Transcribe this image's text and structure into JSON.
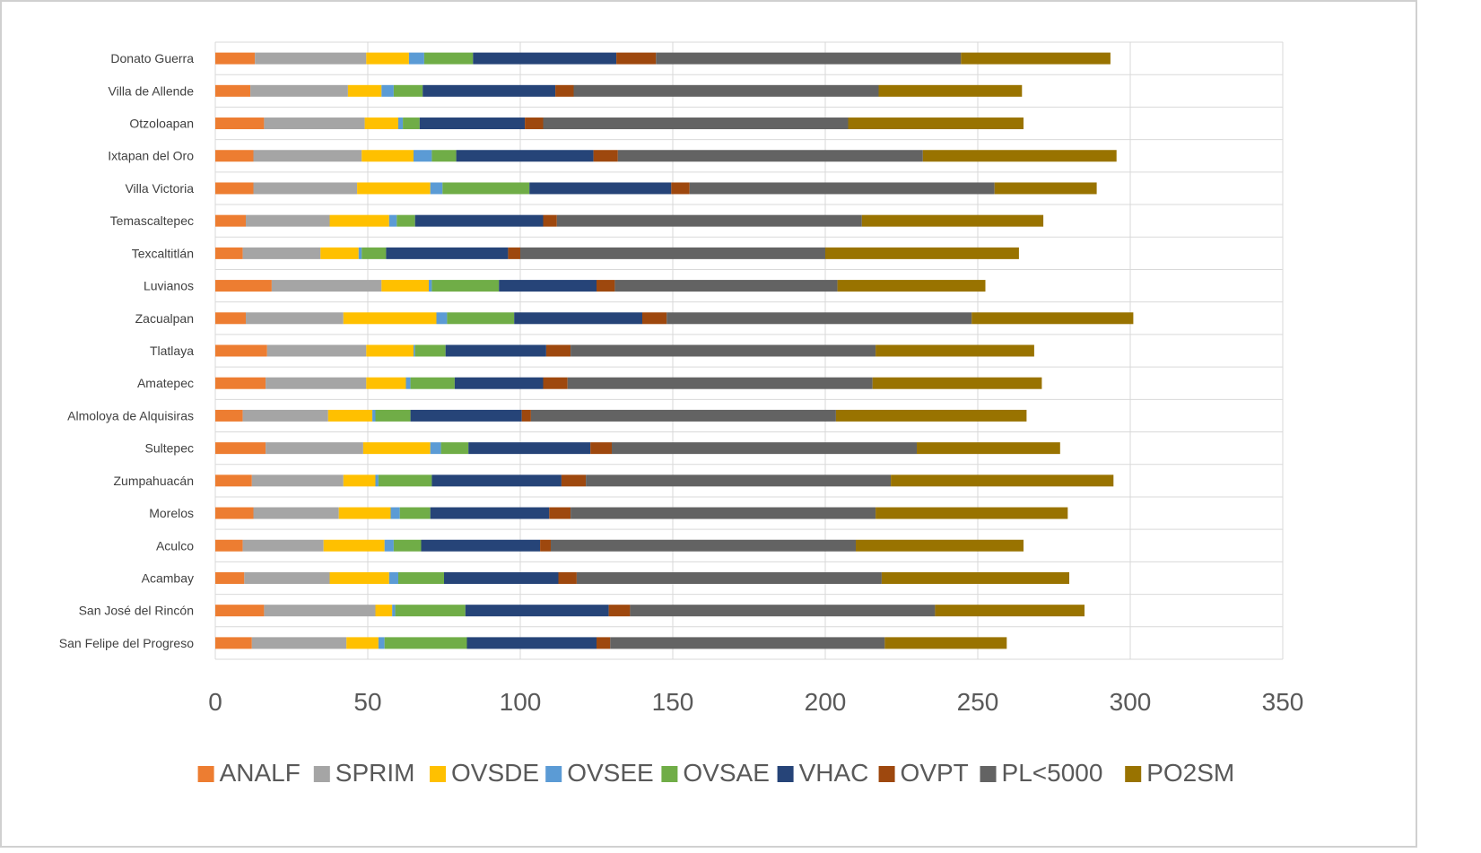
{
  "chart_data": {
    "type": "bar",
    "orientation": "horizontal",
    "stacked": true,
    "title": "",
    "xlabel": "",
    "ylabel": "",
    "xlim": [
      0,
      350
    ],
    "xticks": [
      0,
      50,
      100,
      150,
      200,
      250,
      300,
      350
    ],
    "grid": "vertical",
    "legend_position": "bottom",
    "categories": [
      "Donato Guerra",
      "Villa de Allende",
      "Otzoloapan",
      "Ixtapan del Oro",
      "Villa Victoria",
      "Temascaltepec",
      "Texcaltitlán",
      "Luvianos",
      "Zacualpan",
      "Tlatlaya",
      "Amatepec",
      "Almoloya de Alquisiras",
      "Sultepec",
      "Zumpahuacán",
      "Morelos",
      "Aculco",
      "Acambay",
      "San José del Rincón",
      "San Felipe del Progreso"
    ],
    "series": [
      {
        "name": "ANALF",
        "color": "#ED7D31",
        "values": [
          13,
          11.5,
          16,
          12.5,
          12.5,
          10,
          9,
          18.5,
          10,
          17,
          16.5,
          9,
          16.5,
          12,
          12.5,
          9,
          9.5,
          16,
          12
        ]
      },
      {
        "name": "SPRIM",
        "color": "#A5A5A5",
        "values": [
          36.5,
          32,
          33,
          35.5,
          34,
          27.5,
          25.5,
          36,
          32,
          32.5,
          33,
          28,
          32,
          30,
          28,
          26.5,
          28,
          36.5,
          31
        ]
      },
      {
        "name": "OVSDE",
        "color": "#FFC000",
        "values": [
          14,
          11,
          11,
          17,
          24,
          19.5,
          12.5,
          15.5,
          30.5,
          15.5,
          13,
          14.5,
          22,
          10.5,
          17,
          20,
          19.5,
          5.5,
          10.5
        ]
      },
      {
        "name": "OVSEE",
        "color": "#5B9BD5",
        "values": [
          5,
          4,
          1.5,
          6,
          4,
          2.5,
          1,
          1,
          3.5,
          0.5,
          1.5,
          1,
          3.5,
          1,
          3,
          3,
          3,
          1,
          2
        ]
      },
      {
        "name": "OVSAE",
        "color": "#70AD47",
        "values": [
          16,
          9.5,
          5.5,
          8,
          28.5,
          6,
          8,
          22,
          22,
          10,
          14.5,
          11.5,
          9,
          17.5,
          10,
          9,
          15,
          23,
          27
        ]
      },
      {
        "name": "VHAC",
        "color": "#264478",
        "values": [
          47,
          43.5,
          34.5,
          45,
          46.5,
          42,
          40,
          32,
          42,
          33,
          29,
          36.5,
          40,
          42.5,
          39,
          39,
          37.5,
          47,
          42.5
        ]
      },
      {
        "name": "OVPT",
        "color": "#9E480E",
        "values": [
          13,
          6,
          6,
          8,
          6,
          4.5,
          4,
          6,
          8,
          8,
          8,
          3,
          7,
          8,
          7,
          3.5,
          6,
          7,
          4.5
        ]
      },
      {
        "name": "PL<5000",
        "color": "#636363",
        "values": [
          100,
          100,
          100,
          100,
          100,
          100,
          100,
          73,
          100,
          100,
          100,
          100,
          100,
          100,
          100,
          100,
          100,
          100,
          90
        ]
      },
      {
        "name": "PO2SM",
        "color": "#997300",
        "values": [
          49,
          47,
          57.5,
          63.5,
          33.5,
          59.5,
          63.5,
          48.5,
          53,
          52,
          55.5,
          62.5,
          47,
          73,
          63,
          55,
          61.5,
          49,
          40
        ]
      }
    ]
  }
}
